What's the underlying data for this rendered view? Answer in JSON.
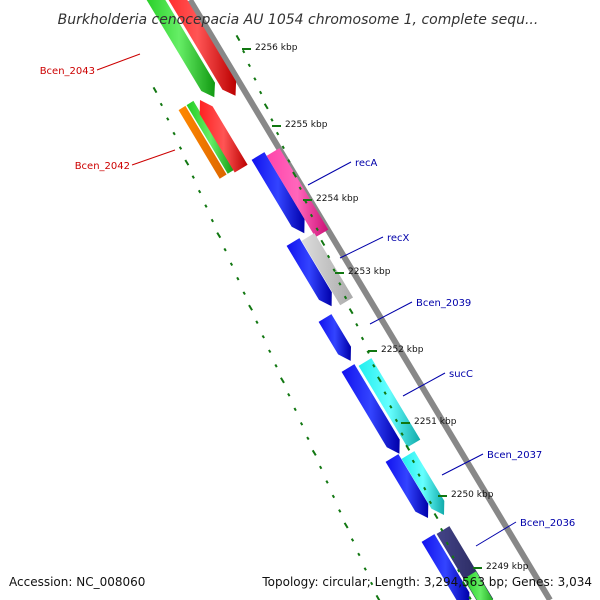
{
  "title": "Burkholderia cenocepacia AU 1054 chromosome 1, complete sequ...",
  "footer": {
    "accession": "Accession: NC_008060",
    "summary": "Topology: circular; Length: 3,294,563 bp; Genes: 3,034"
  },
  "colors": {
    "left_label": "#cc0000",
    "right_label": "#0000aa",
    "backbone": "#888888",
    "tick": "#117711"
  },
  "ticks": [
    {
      "label": "2256 kbp"
    },
    {
      "label": "2255 kbp"
    },
    {
      "label": "2254 kbp"
    },
    {
      "label": "2253 kbp"
    },
    {
      "label": "2252 kbp"
    },
    {
      "label": "2251 kbp"
    },
    {
      "label": "2250 kbp"
    },
    {
      "label": "2249 kbp"
    }
  ],
  "genes": [
    {
      "name": "Bcen_2043",
      "side": "left"
    },
    {
      "name": "Bcen_2042",
      "side": "left"
    },
    {
      "name": "recA",
      "side": "right"
    },
    {
      "name": "recX",
      "side": "right"
    },
    {
      "name": "Bcen_2039",
      "side": "right"
    },
    {
      "name": "sucC",
      "side": "right"
    },
    {
      "name": "Bcen_2037",
      "side": "right"
    },
    {
      "name": "Bcen_2036",
      "side": "right"
    }
  ]
}
